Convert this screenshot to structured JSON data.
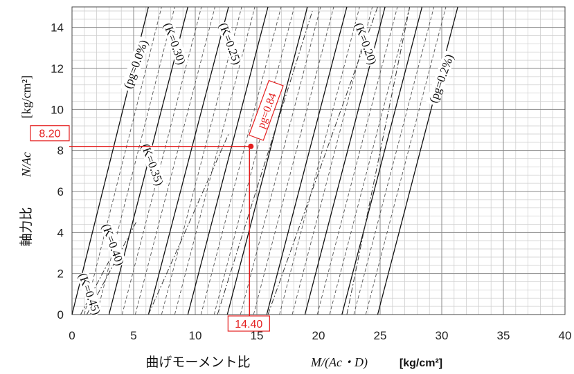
{
  "chart_data": {
    "type": "line",
    "xlim": [
      0,
      40
    ],
    "ylim": [
      0,
      14
    ],
    "x_ticks": [
      "0",
      "5",
      "10",
      "15",
      "20",
      "25",
      "30",
      "35",
      "40"
    ],
    "y_ticks": [
      "0",
      "2",
      "4",
      "6",
      "8",
      "10",
      "12",
      "14"
    ],
    "grid": true,
    "y_axis_label": {
      "text": "軸力比",
      "variable": "N/Ac",
      "unit": "[kg/cm²]"
    },
    "x_axis_label": {
      "text": "曲げモーメント比",
      "variable": "M/(Ac・D)",
      "unit": "[kg/cm²]"
    },
    "pg_series": [
      {
        "x": [
          0.0,
          6.2
        ],
        "y": [
          0,
          15
        ]
      },
      {
        "x": [
          3.0,
          9.4
        ],
        "y": [
          0,
          15
        ]
      },
      {
        "x": [
          6.2,
          12.7
        ],
        "y": [
          0,
          15
        ]
      },
      {
        "x": [
          9.4,
          15.9
        ],
        "y": [
          0,
          15
        ]
      },
      {
        "x": [
          12.6,
          19.1
        ],
        "y": [
          0,
          15
        ]
      },
      {
        "x": [
          15.8,
          22.3
        ],
        "y": [
          0,
          15
        ]
      },
      {
        "x": [
          18.9,
          25.4
        ],
        "y": [
          0,
          15
        ]
      },
      {
        "x": [
          21.9,
          28.4
        ],
        "y": [
          0,
          15
        ]
      },
      {
        "x": [
          24.8,
          31.3
        ],
        "y": [
          0,
          15
        ]
      }
    ],
    "k_series": [
      {
        "x": [
          0.7,
          3.0
        ],
        "y": [
          0,
          2.6
        ]
      },
      {
        "x": [
          1.2,
          5.2
        ],
        "y": [
          0,
          4.5
        ]
      },
      {
        "x": [
          6.2,
          12.7
        ],
        "y": [
          0,
          8.8
        ]
      },
      {
        "x": [
          11.8,
          19.5
        ],
        "y": [
          0,
          14.8
        ]
      },
      {
        "x": [
          15.9,
          24.8
        ],
        "y": [
          0,
          15
        ]
      },
      {
        "x": [
          22.3,
          27.4
        ],
        "y": [
          0,
          15
        ]
      }
    ],
    "pg_labels": [
      {
        "text": "(pg=0.0%)",
        "x": 5.2,
        "y": 12.2
      },
      {
        "text": "(pg=0.2%)",
        "x": 30.0,
        "y": 11.5
      }
    ],
    "k_labels": [
      {
        "text": "(K=0.30)",
        "x": 8.3,
        "y": 13.2
      },
      {
        "text": "(K=0.25)",
        "x": 12.8,
        "y": 13.2
      },
      {
        "text": "(K=0.20)",
        "x": 23.8,
        "y": 13.2
      },
      {
        "text": "(K=0.35)",
        "x": 6.5,
        "y": 7.3
      },
      {
        "text": "(K=0.40)",
        "x": 3.3,
        "y": 3.4
      },
      {
        "text": "(K=0.45)",
        "x": 1.4,
        "y": 1.0
      }
    ],
    "point": {
      "x": 14.4,
      "y": 8.2,
      "x_label": "14.40",
      "y_label": "8.20",
      "pg_label": "pg=0.84"
    }
  }
}
